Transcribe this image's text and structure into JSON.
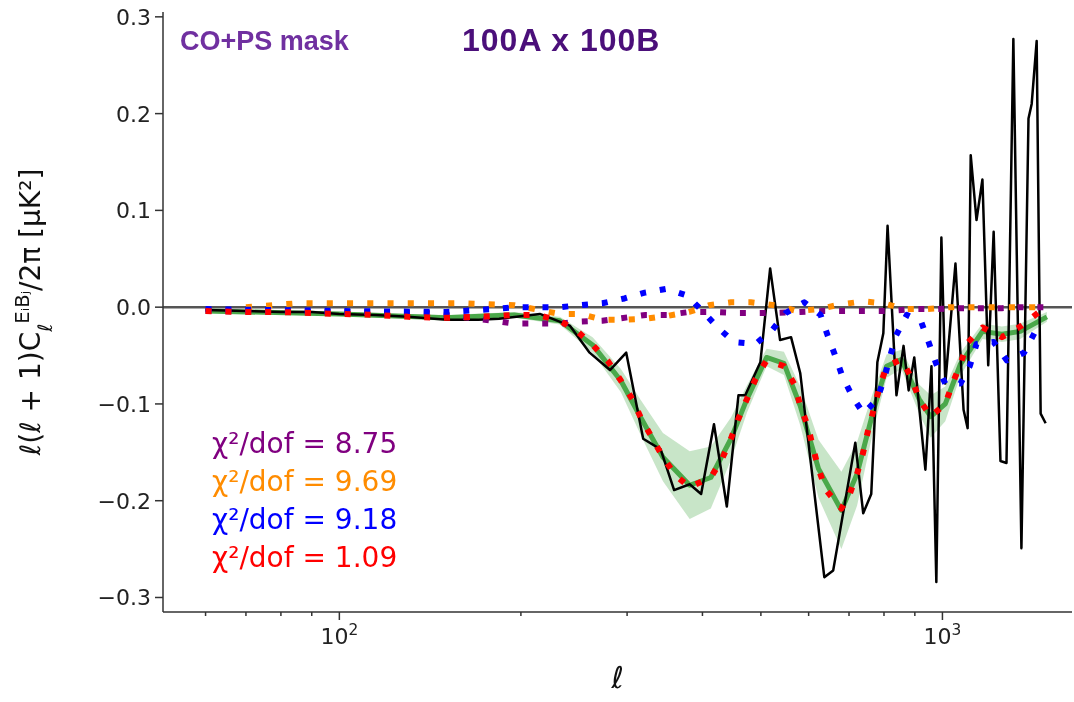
{
  "chart_data": {
    "type": "line",
    "title": "100A x 100B",
    "xlabel": "ℓ",
    "ylabel": "ℓ(ℓ + 1)C$_{ℓ}$$^{EᵢBⱼ}$/2π  [μK²]",
    "annotations": [
      "CO+PS mask"
    ],
    "log": "x",
    "xlim": [
      51,
      1640
    ],
    "ylim": [
      -0.315,
      0.305
    ],
    "xticks": [
      {
        "value": 60,
        "label": null
      },
      {
        "value": 70,
        "label": null
      },
      {
        "value": 80,
        "label": null
      },
      {
        "value": 90,
        "label": null
      },
      {
        "value": 100,
        "label": "10$^{2}$"
      },
      {
        "value": 200,
        "label": null
      },
      {
        "value": 300,
        "label": null
      },
      {
        "value": 400,
        "label": null
      },
      {
        "value": 500,
        "label": null
      },
      {
        "value": 600,
        "label": null
      },
      {
        "value": 700,
        "label": null
      },
      {
        "value": 800,
        "label": null
      },
      {
        "value": 900,
        "label": null
      },
      {
        "value": 1000,
        "label": "10$^{3}$"
      }
    ],
    "yticks": [
      {
        "value": -0.3,
        "label": "−0.3"
      },
      {
        "value": -0.2,
        "label": "−0.2"
      },
      {
        "value": -0.1,
        "label": "−0.1"
      },
      {
        "value": 0,
        "label": "0.0"
      },
      0.1,
      0.2,
      0.3
    ],
    "legend": "bottom left",
    "marker": "none",
    "ref_lines": [
      {
        "axis": "y",
        "value": 0,
        "color": "#555555"
      }
    ],
    "series": [
      {
        "color": "#4aa84a",
        "line_style": "solid",
        "x": [
          60,
          100,
          150,
          195,
          232,
          263,
          293,
          316,
          344,
          381,
          413,
          446,
          474,
          511,
          546,
          581,
          623,
          680,
          722,
          769,
          808,
          855,
          915,
          956,
          1011,
          1071,
          1165,
          1255,
          1346,
          1490
        ],
        "values": [
          -0.004,
          -0.007,
          -0.011,
          -0.008,
          -0.014,
          -0.039,
          -0.076,
          -0.114,
          -0.155,
          -0.184,
          -0.176,
          -0.136,
          -0.095,
          -0.052,
          -0.058,
          -0.102,
          -0.167,
          -0.21,
          -0.172,
          -0.106,
          -0.061,
          -0.054,
          -0.095,
          -0.113,
          -0.1,
          -0.059,
          -0.025,
          -0.028,
          -0.025,
          -0.01
        ],
        "lower": [
          -0.006,
          -0.009,
          -0.014,
          -0.011,
          -0.018,
          -0.047,
          -0.088,
          -0.132,
          -0.18,
          -0.219,
          -0.208,
          -0.158,
          -0.109,
          -0.061,
          -0.07,
          -0.122,
          -0.197,
          -0.25,
          -0.205,
          -0.126,
          -0.073,
          -0.064,
          -0.11,
          -0.135,
          -0.118,
          -0.071,
          -0.033,
          -0.036,
          -0.033,
          -0.015
        ],
        "upper": [
          -0.002,
          -0.005,
          -0.008,
          -0.005,
          -0.01,
          -0.031,
          -0.064,
          -0.096,
          -0.13,
          -0.149,
          -0.144,
          -0.114,
          -0.081,
          -0.043,
          -0.046,
          -0.082,
          -0.137,
          -0.17,
          -0.139,
          -0.086,
          -0.049,
          -0.044,
          -0.08,
          -0.091,
          -0.082,
          -0.047,
          -0.017,
          -0.02,
          -0.017,
          -0.005
        ]
      },
      {
        "color": "#000000",
        "line_style": "solid",
        "x": [
          60,
          70,
          80,
          90,
          100,
          115,
          130,
          151,
          170,
          184,
          215,
          241,
          260,
          281,
          299,
          319,
          341,
          359,
          381,
          398,
          418,
          439,
          459,
          471,
          499,
          518,
          538,
          561,
          581,
          637,
          659,
          717,
          739,
          762,
          780,
          798,
          811,
          839,
          862,
          879,
          898,
          937,
          959,
          977,
          996,
          1011,
          1051,
          1084,
          1101,
          1114,
          1139,
          1165,
          1191,
          1216,
          1248,
          1277,
          1311,
          1352,
          1389,
          1406,
          1433,
          1455,
          1483
        ],
        "values": [
          -0.003,
          -0.004,
          -0.005,
          -0.005,
          -0.007,
          -0.008,
          -0.01,
          -0.013,
          -0.013,
          -0.012,
          -0.007,
          -0.019,
          -0.047,
          -0.065,
          -0.047,
          -0.136,
          -0.147,
          -0.189,
          -0.183,
          -0.193,
          -0.121,
          -0.206,
          -0.091,
          -0.091,
          -0.057,
          0.04,
          -0.034,
          -0.031,
          -0.068,
          -0.279,
          -0.272,
          -0.14,
          -0.213,
          -0.193,
          -0.057,
          -0.027,
          0.084,
          -0.091,
          -0.04,
          -0.086,
          -0.052,
          -0.168,
          -0.061,
          -0.284,
          0.072,
          -0.079,
          0.045,
          -0.106,
          -0.125,
          0.157,
          0.09,
          0.132,
          -0.06,
          0.078,
          -0.159,
          -0.161,
          0.277,
          -0.249,
          0.195,
          0.21,
          0.275,
          -0.11,
          -0.12
        ]
      },
      {
        "name": "χ²/dof = 8.75",
        "color": "#800080",
        "line_style": "dotted",
        "x": [
          60,
          100,
          140,
          160,
          180,
          195,
          213,
          232,
          251,
          273,
          322,
          350,
          380,
          416,
          451,
          490,
          532,
          581,
          632,
          690,
          752,
          820,
          895,
          977,
          1065,
          1160,
          1255,
          1350,
          1470
        ],
        "values": [
          -0.004,
          -0.005,
          -0.006,
          -0.01,
          -0.014,
          -0.017,
          -0.017,
          -0.017,
          -0.015,
          -0.014,
          -0.008,
          -0.008,
          -0.005,
          -0.005,
          -0.006,
          -0.006,
          -0.006,
          -0.005,
          -0.004,
          -0.004,
          -0.004,
          -0.004,
          -0.002,
          -0.002,
          -0.001,
          -0.001,
          -0.001,
          0.0,
          0.0
        ]
      },
      {
        "name": "χ²/dof = 9.69",
        "color": "#ff8c00",
        "line_style": "dotted",
        "x": [
          70,
          85,
          100,
          130,
          160,
          195,
          232,
          251,
          273,
          297,
          322,
          350,
          380,
          410,
          446,
          481,
          527,
          574,
          623,
          680,
          740,
          798,
          866,
          944,
          1026,
          1125,
          1216,
          1312,
          1425
        ],
        "values": [
          0.0,
          0.004,
          0.004,
          0.004,
          0.004,
          0.002,
          -0.007,
          -0.007,
          -0.013,
          -0.013,
          -0.012,
          -0.009,
          -0.005,
          0.002,
          0.005,
          0.005,
          0.002,
          -0.004,
          -0.002,
          0.003,
          0.006,
          0.004,
          -0.002,
          -0.002,
          0.0,
          0.0,
          0.0,
          0.0,
          0.0
        ]
      },
      {
        "name": "χ²/dof = 9.18",
        "color": "#0000ff",
        "line_style": "dotted",
        "x": [
          60,
          100,
          150,
          180,
          195,
          213,
          232,
          251,
          273,
          297,
          321,
          349,
          377,
          400,
          424,
          451,
          490,
          523,
          550,
          590,
          628,
          645,
          663,
          682,
          710,
          740,
          780,
          802,
          818,
          838,
          873,
          922,
          951,
          977,
          1011,
          1071,
          1110,
          1139,
          1216,
          1279,
          1366,
          1420
        ],
        "values": [
          -0.002,
          -0.004,
          -0.005,
          -0.002,
          0.0,
          0.0,
          0.0,
          0.002,
          0.004,
          0.009,
          0.015,
          0.019,
          0.012,
          -0.004,
          -0.021,
          -0.036,
          -0.038,
          -0.023,
          -0.006,
          0.005,
          -0.008,
          -0.029,
          -0.049,
          -0.071,
          -0.093,
          -0.11,
          -0.095,
          -0.072,
          -0.052,
          -0.029,
          -0.008,
          -0.015,
          -0.038,
          -0.059,
          -0.079,
          -0.079,
          -0.061,
          -0.038,
          -0.036,
          -0.055,
          -0.047,
          -0.027
        ]
      },
      {
        "name": "χ²/dof = 1.09",
        "color": "#ff0000",
        "line_style": "dotted",
        "x": [
          60,
          70,
          80,
          90,
          100,
          115,
          130,
          150,
          170,
          195,
          213,
          232,
          248,
          263,
          279,
          293,
          306,
          316,
          330,
          344,
          361,
          381,
          413,
          431,
          446,
          459,
          474,
          490,
          511,
          546,
          570,
          581,
          599,
          610,
          623,
          641,
          680,
          702,
          722,
          739,
          753,
          769,
          786,
          808,
          855,
          890,
          915,
          956,
          1011,
          1039,
          1071,
          1100,
          1165,
          1255,
          1346,
          1440
        ],
        "values": [
          -0.004,
          -0.005,
          -0.005,
          -0.006,
          -0.007,
          -0.008,
          -0.01,
          -0.011,
          -0.01,
          -0.008,
          -0.008,
          -0.014,
          -0.025,
          -0.039,
          -0.056,
          -0.076,
          -0.095,
          -0.114,
          -0.135,
          -0.155,
          -0.174,
          -0.186,
          -0.176,
          -0.157,
          -0.136,
          -0.115,
          -0.095,
          -0.074,
          -0.055,
          -0.061,
          -0.081,
          -0.102,
          -0.124,
          -0.145,
          -0.167,
          -0.189,
          -0.208,
          -0.193,
          -0.172,
          -0.15,
          -0.127,
          -0.106,
          -0.083,
          -0.061,
          -0.054,
          -0.074,
          -0.095,
          -0.113,
          -0.1,
          -0.079,
          -0.059,
          -0.037,
          -0.021,
          -0.031,
          -0.02,
          -0.006
        ]
      }
    ]
  }
}
